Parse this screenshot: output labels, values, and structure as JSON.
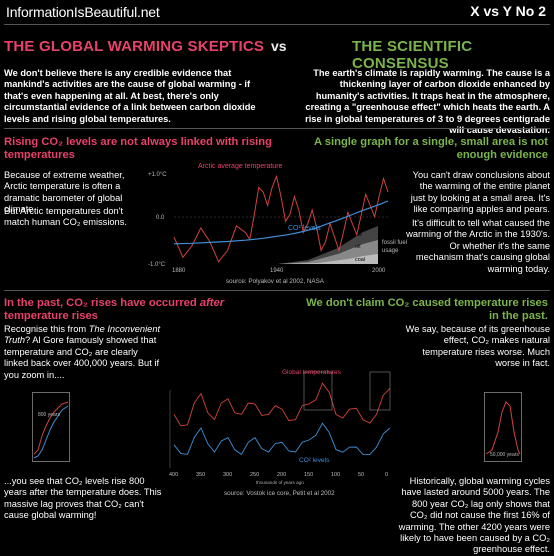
{
  "header": {
    "site": "InformationIsBeautiful.net",
    "series": "X vs Y No 2"
  },
  "title": {
    "left": "THE GLOBAL WARMING SKEPTICS",
    "vs": "vs",
    "right": "THE SCIENTIFIC CONSENSUS"
  },
  "intro": {
    "skeptic": "We don't believe there is any credible evidence that mankind's activities are the cause of global warming - if that's even happening at all.  At best, there's only circumstantial evidence of a link between carbon dioxide levels and rising global temperatures.",
    "consensus": "The earth's climate is rapidly warming. The cause is a thickening layer of carbon dioxide enhanced by humanity's activities. It traps heat in the atmosphere, creating a \"greenhouse effect\" which heats the earth. A rise in global temperatures of 3 to 9 degrees centigrade will cause devastation."
  },
  "section1": {
    "skeptic_heading": "Rising CO₂ levels are not always linked with rising temperatures",
    "consensus_heading": "A single graph for a single, small area is not enough evidence",
    "skeptic_p1": "Because of extreme weather, Arctic temperature is often a dramatic barometer of global climate.",
    "skeptic_p2": "But Arctic temperatures don't match human CO₂ emissions.",
    "consensus_p1": "You can't draw conclusions about the warming of the entire planet just by looking at a small area. It's like comparing apples and pears.",
    "consensus_p2": "It's difficult to tell what caused the warming of the Arctic in the 1930's. Or whether it's the same mechanism that's causing global warming today.",
    "chart": {
      "title": "Arctic average temperature",
      "co2_label": "CO² levels",
      "y_top": "+1.0°C",
      "y_mid": "0.0",
      "y_bot": "-1.0°C",
      "x_ticks": [
        "1880",
        "1940",
        "2000"
      ],
      "band_gas": "gas",
      "band_oil": "oil",
      "band_coal": "coal",
      "fossil_label_1": "fossil fuel",
      "fossil_label_2": "usage",
      "source": "source: Polyakov et al 2002, NASA"
    }
  },
  "section2": {
    "skeptic_heading_a": "In the past, CO₂ rises have occurred ",
    "skeptic_heading_b": "after",
    "skeptic_heading_c": " temperature rises",
    "consensus_heading_1": "We don't claim CO₂ caused temperature rises",
    "consensus_heading_2": "in the past.",
    "skeptic_p1_a": "Recognise this from ",
    "skeptic_p1_b": "The Inconvenient Truth",
    "skeptic_p1_c": "? Al Gore famously showed that temperature and CO₂ are clearly linked back over 400,000 years. But if you zoom in....",
    "skeptic_p2": "...you see that CO₂ levels rise 800 years after the temperature does. This massive lag proves that CO₂ can't cause global warming!",
    "consensus_p1": "We say, because of its greenhouse effect, CO₂ makes natural temperature rises worse. Much worse in fact.",
    "consensus_p2": "Historically, global warming cycles have lasted around 5000 years. The 800 year CO₂ lag only shows that CO₂ did not cause the first 16% of warming. The other 4200 years were likely to have been caused by a CO₂ greenhouse effect.",
    "chart": {
      "temp_label": "Global temperatures",
      "co2_label": "CO² levels",
      "x_ticks": [
        "400",
        "350",
        "300",
        "250",
        "200",
        "150",
        "100",
        "50",
        "0"
      ],
      "x_unit": "thousands of years ago",
      "zoom_left_label": "800 years",
      "zoom_right_label": "50,000 years",
      "source": "source: Vostok ice core, Petit et al 2002"
    }
  },
  "colors": {
    "red": "#e8416a",
    "green": "#7ab44a",
    "blue": "#3f8fd8",
    "temp_line": "#d2423c"
  },
  "chart_data": [
    {
      "type": "line",
      "title": "Arctic average temperature",
      "x": [
        1880,
        1890,
        1900,
        1910,
        1920,
        1925,
        1930,
        1935,
        1940,
        1945,
        1950,
        1955,
        1960,
        1965,
        1970,
        1975,
        1980,
        1985,
        1990,
        1995,
        2000
      ],
      "ylim": [
        -1.0,
        1.0
      ],
      "series": [
        {
          "name": "Arctic average temperature",
          "values": [
            -0.4,
            -0.6,
            -0.5,
            -0.7,
            -0.3,
            0.1,
            0.6,
            0.7,
            0.5,
            0.1,
            0.2,
            -0.1,
            -0.2,
            -0.5,
            -0.4,
            -0.3,
            -0.1,
            0.1,
            0.3,
            0.5,
            0.6
          ]
        },
        {
          "name": "CO² levels",
          "values": [
            -0.55,
            -0.54,
            -0.52,
            -0.5,
            -0.47,
            -0.45,
            -0.43,
            -0.4,
            -0.37,
            -0.34,
            -0.3,
            -0.25,
            -0.2,
            -0.12,
            -0.05,
            0.02,
            0.1,
            0.18,
            0.25,
            0.32,
            0.4
          ]
        }
      ]
    },
    {
      "type": "line",
      "x": [
        400,
        375,
        350,
        325,
        300,
        275,
        250,
        225,
        200,
        175,
        150,
        125,
        100,
        75,
        50,
        25,
        0
      ],
      "series": [
        {
          "name": "Global temperatures",
          "values": [
            0.3,
            0.1,
            0.7,
            0.2,
            0.6,
            0.3,
            0.5,
            0.3,
            0.4,
            0.2,
            0.5,
            0.9,
            0.3,
            0.4,
            0.2,
            0.3,
            0.8
          ]
        },
        {
          "name": "CO² levels",
          "values": [
            0.4,
            0.2,
            0.75,
            0.25,
            0.55,
            0.2,
            0.55,
            0.25,
            0.45,
            0.25,
            0.5,
            0.85,
            0.3,
            0.35,
            0.2,
            0.35,
            0.75
          ]
        }
      ]
    }
  ]
}
